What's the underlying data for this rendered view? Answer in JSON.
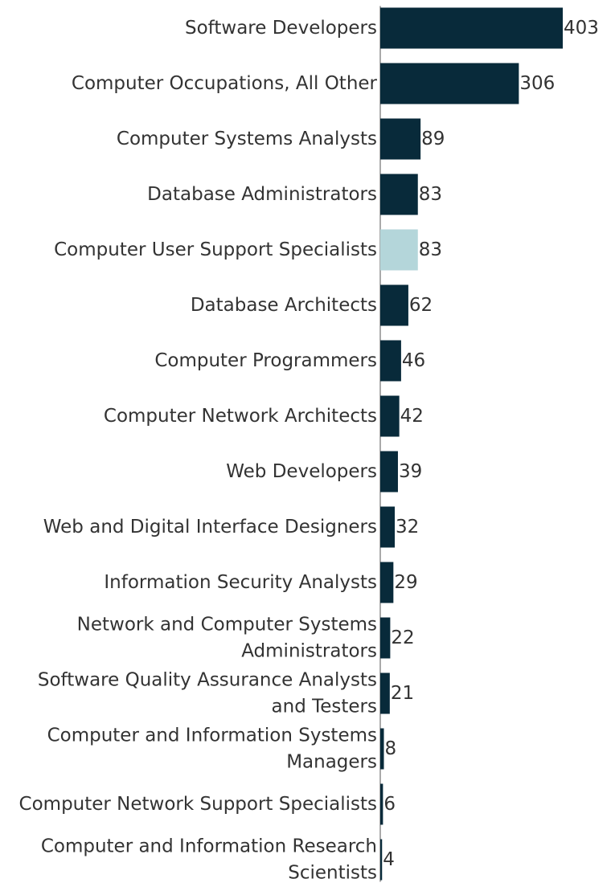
{
  "chart_data": {
    "type": "bar",
    "orientation": "horizontal",
    "categories": [
      "Software Developers",
      "Computer Occupations, All Other",
      "Computer Systems Analysts",
      "Database Administrators",
      "Computer User Support Specialists",
      "Database Architects",
      "Computer Programmers",
      "Computer Network Architects",
      "Web Developers",
      "Web and Digital Interface Designers",
      "Information Security Analysts",
      "Network and Computer Systems Administrators",
      "Software Quality Assurance Analysts and Testers",
      "Computer and Information Systems Managers",
      "Computer Network Support Specialists",
      "Computer and Information Research Scientists"
    ],
    "category_lines": [
      [
        "Software Developers"
      ],
      [
        "Computer Occupations, All Other"
      ],
      [
        "Computer Systems Analysts"
      ],
      [
        "Database Administrators"
      ],
      [
        "Computer User Support Specialists"
      ],
      [
        "Database Architects"
      ],
      [
        "Computer Programmers"
      ],
      [
        "Computer Network Architects"
      ],
      [
        "Web Developers"
      ],
      [
        "Web and Digital Interface Designers"
      ],
      [
        "Information Security Analysts"
      ],
      [
        "Network and Computer Systems",
        "Administrators"
      ],
      [
        "Software Quality Assurance Analysts",
        "and Testers"
      ],
      [
        "Computer and Information Systems",
        "Managers"
      ],
      [
        "Computer Network Support Specialists"
      ],
      [
        "Computer and Information Research",
        "Scientists"
      ]
    ],
    "values": [
      403,
      306,
      89,
      83,
      83,
      62,
      46,
      42,
      39,
      32,
      29,
      22,
      21,
      8,
      6,
      4
    ],
    "highlight_category": "Computer User Support Specialists",
    "colors": {
      "bar": "#082a3a",
      "highlight": "#b4d6da",
      "axis": "#555555",
      "text": "#333333"
    },
    "xlim": [
      0,
      403
    ],
    "grid": false,
    "legend": "none",
    "title": "",
    "xlabel": "",
    "ylabel": ""
  }
}
